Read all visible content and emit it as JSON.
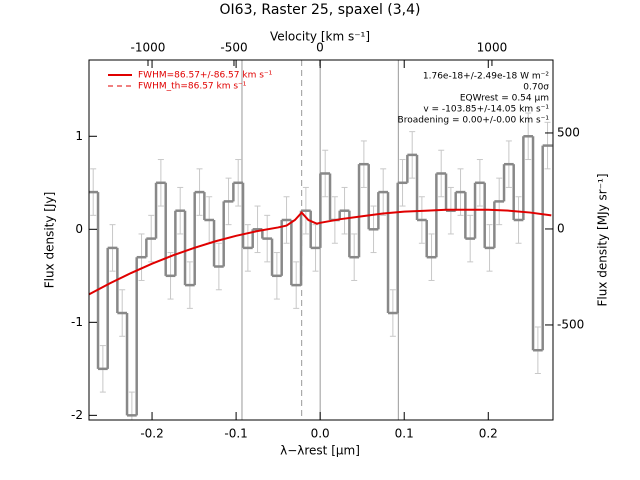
{
  "chart_data": {
    "type": "step",
    "title": "OI63, Raster 25, spaxel (3,4)",
    "xlabel": "λ−λrest [μm]",
    "x2label": "Velocity [km s⁻¹]",
    "ylabel": "Flux density [Jy]",
    "y2label": "Flux density [MJy sr⁻¹]",
    "xlim": [
      -0.275,
      0.277
    ],
    "xticks": [
      -0.2,
      -0.1,
      {
        "value": 0,
        "label": "0.0"
      },
      0.1,
      0.2
    ],
    "x2lim": [
      -1343,
      1355
    ],
    "x2ticks": [
      -1000,
      -500,
      0,
      1000
    ],
    "ylim": [
      -2.05,
      1.82
    ],
    "yticks": [
      -2,
      -1,
      0,
      1
    ],
    "y2lim": [
      -995,
      880
    ],
    "y2ticks": [
      -500,
      0,
      500
    ],
    "vlines": [
      -0.093,
      0,
      0.093
    ],
    "line_center": -0.022,
    "series": [
      {
        "name": "spectrum",
        "color": "#888888",
        "error": 0.25,
        "x": [
          -0.27,
          -0.2585,
          -0.247,
          -0.2355,
          -0.224,
          -0.2125,
          -0.201,
          -0.1895,
          -0.178,
          -0.1665,
          -0.155,
          -0.1435,
          -0.132,
          -0.1205,
          -0.109,
          -0.0975,
          -0.086,
          -0.0745,
          -0.063,
          -0.0515,
          -0.04,
          -0.0285,
          -0.017,
          -0.0055,
          0.006,
          0.0175,
          0.029,
          0.0405,
          0.052,
          0.0635,
          0.075,
          0.0865,
          0.098,
          0.1095,
          0.121,
          0.1325,
          0.144,
          0.1555,
          0.167,
          0.1785,
          0.19,
          0.2015,
          0.213,
          0.2245,
          0.236,
          0.2475,
          0.259,
          0.2705
        ],
        "values": [
          0.4,
          -1.5,
          -0.2,
          -0.9,
          -2.0,
          -0.3,
          -0.1,
          0.5,
          -0.5,
          0.2,
          -0.6,
          0.4,
          0.1,
          -0.4,
          0.3,
          0.5,
          -0.2,
          0.0,
          -0.1,
          -0.5,
          0.1,
          -0.6,
          0.2,
          -0.2,
          0.6,
          0.1,
          0.2,
          -0.3,
          0.7,
          0.0,
          0.4,
          -0.9,
          0.5,
          0.8,
          0.1,
          -0.3,
          0.6,
          0.2,
          0.4,
          -0.1,
          0.5,
          -0.2,
          0.3,
          0.7,
          0.1,
          1.0,
          -1.3,
          0.9
        ]
      },
      {
        "name": "fit",
        "color": "#e00000",
        "x": [
          -0.275,
          -0.25,
          -0.225,
          -0.2,
          -0.175,
          -0.15,
          -0.125,
          -0.1,
          -0.075,
          -0.05,
          -0.04,
          -0.03,
          -0.022,
          -0.014,
          -0.004,
          0.0,
          0.025,
          0.05,
          0.075,
          0.1,
          0.125,
          0.15,
          0.175,
          0.2,
          0.225,
          0.25,
          0.275
        ],
        "values": [
          -0.7,
          -0.58,
          -0.47,
          -0.37,
          -0.28,
          -0.2,
          -0.13,
          -0.07,
          -0.02,
          0.02,
          0.04,
          0.1,
          0.18,
          0.1,
          0.06,
          0.07,
          0.11,
          0.14,
          0.17,
          0.19,
          0.2,
          0.21,
          0.21,
          0.21,
          0.2,
          0.18,
          0.15
        ]
      }
    ],
    "legend": [
      "FWHM=86.57+/-86.57 km s⁻¹",
      "FWHM_th=86.57 km s⁻¹"
    ],
    "annotations": [
      "1.76e-18+/-2.49e-18 W m⁻²",
      "0.70σ",
      "EQWrest = 0.54 μm",
      "v = -103.85+/-14.05 km s⁻¹",
      "Broadening = 0.00+/-0.00 km s⁻¹"
    ]
  }
}
